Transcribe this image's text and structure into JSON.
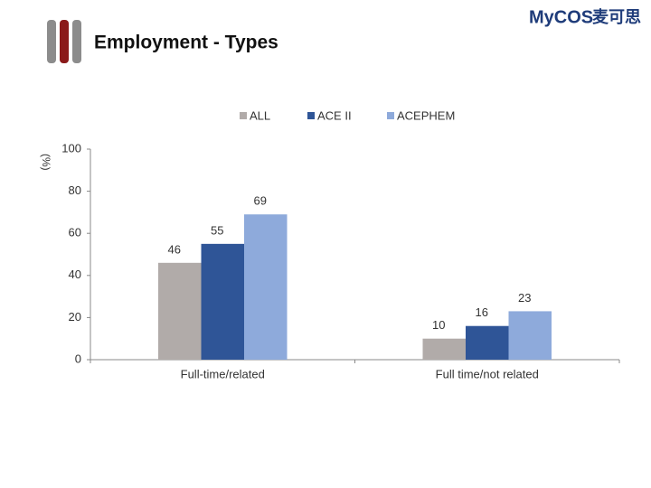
{
  "logo": "MyCOS",
  "logo_cn": "麦可思",
  "chart_data": {
    "type": "bar",
    "title": "Employment - Types",
    "y_label": "(%)",
    "categories": [
      "Full-time/related",
      "Full time/not related"
    ],
    "series": [
      {
        "name": "ALL",
        "color": "#b1aba9",
        "values": [
          46,
          10
        ]
      },
      {
        "name": "ACE II",
        "color": "#2f5597",
        "values": [
          55,
          16
        ]
      },
      {
        "name": "ACEPHEM",
        "color": "#8eaadb",
        "values": [
          69,
          23
        ]
      }
    ],
    "ylim": [
      0,
      100
    ],
    "yticks": [
      0,
      20,
      40,
      60,
      80,
      100
    ],
    "legend": "top"
  }
}
